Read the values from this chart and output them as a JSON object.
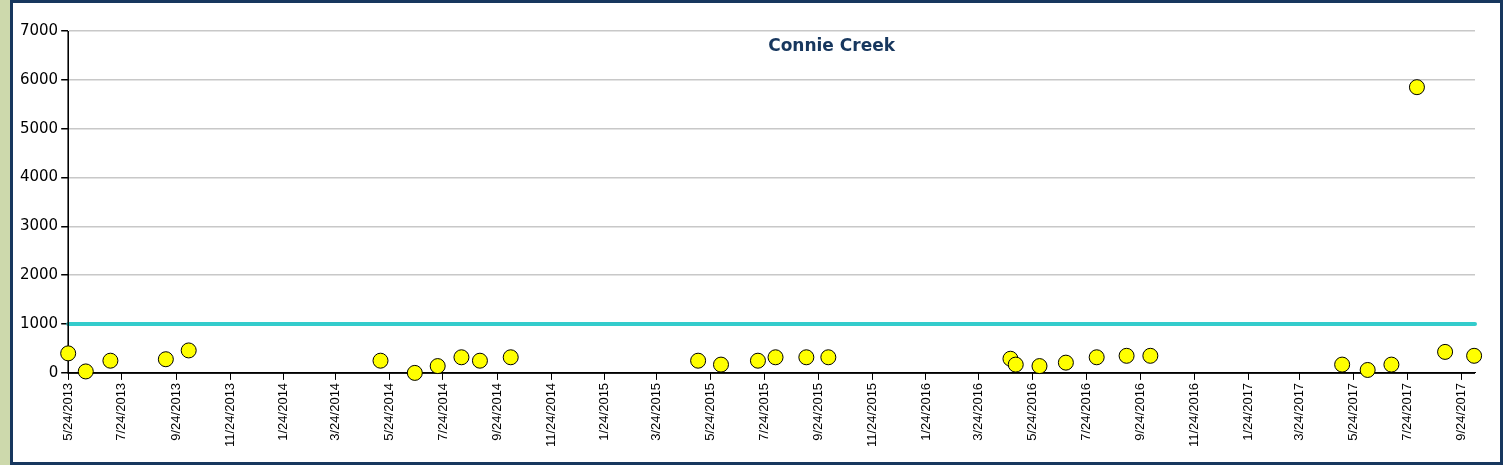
{
  "chart_data": {
    "type": "scatter",
    "title": "Connie Creek",
    "x": [
      "2013-05-24",
      "2013-06-13",
      "2013-07-11",
      "2013-09-12",
      "2013-10-08",
      "2014-05-14",
      "2014-06-22",
      "2014-07-18",
      "2014-08-14",
      "2014-09-04",
      "2014-10-09",
      "2015-05-10",
      "2015-06-05",
      "2015-07-17",
      "2015-08-06",
      "2015-09-10",
      "2015-10-05",
      "2016-04-29",
      "2016-05-05",
      "2016-06-01",
      "2016-07-01",
      "2016-08-05",
      "2016-09-08",
      "2016-10-05",
      "2017-05-11",
      "2017-06-09",
      "2017-07-06",
      "2017-08-04",
      "2017-09-05",
      "2017-10-08"
    ],
    "series": [
      {
        "color": "#ffff00",
        "values": [
          400,
          30,
          250,
          280,
          460,
          250,
          0,
          140,
          320,
          250,
          320,
          250,
          170,
          250,
          320,
          320,
          320,
          290,
          170,
          140,
          210,
          320,
          350,
          350,
          170,
          60,
          170,
          5850,
          430,
          350
        ]
      }
    ],
    "xlim": [
      "2013-05-24",
      "2017-10-09"
    ],
    "xticks": [
      {
        "value": "2013-05-24",
        "label": "5/24/2013"
      },
      {
        "value": "2013-07-24",
        "label": "7/24/2013"
      },
      {
        "value": "2013-09-24",
        "label": "9/24/2013"
      },
      {
        "value": "2013-11-24",
        "label": "11/24/2013"
      },
      {
        "value": "2014-01-24",
        "label": "1/24/2014"
      },
      {
        "value": "2014-03-24",
        "label": "3/24/2014"
      },
      {
        "value": "2014-05-24",
        "label": "5/24/2014"
      },
      {
        "value": "2014-07-24",
        "label": "7/24/2014"
      },
      {
        "value": "2014-09-24",
        "label": "9/24/2014"
      },
      {
        "value": "2014-11-24",
        "label": "11/24/2014"
      },
      {
        "value": "2015-01-24",
        "label": "1/24/2015"
      },
      {
        "value": "2015-03-24",
        "label": "3/24/2015"
      },
      {
        "value": "2015-05-24",
        "label": "5/24/2015"
      },
      {
        "value": "2015-07-24",
        "label": "7/24/2015"
      },
      {
        "value": "2015-09-24",
        "label": "9/24/2015"
      },
      {
        "value": "2015-11-24",
        "label": "11/24/2015"
      },
      {
        "value": "2016-01-24",
        "label": "1/24/2016"
      },
      {
        "value": "2016-03-24",
        "label": "3/24/2016"
      },
      {
        "value": "2016-05-24",
        "label": "5/24/2016"
      },
      {
        "value": "2016-07-24",
        "label": "7/24/2016"
      },
      {
        "value": "2016-09-24",
        "label": "9/24/2016"
      },
      {
        "value": "2016-11-24",
        "label": "11/24/2016"
      },
      {
        "value": "2017-01-24",
        "label": "1/24/2017"
      },
      {
        "value": "2017-03-24",
        "label": "3/24/2017"
      },
      {
        "value": "2017-05-24",
        "label": "5/24/2017"
      },
      {
        "value": "2017-07-24",
        "label": "7/24/2017"
      },
      {
        "value": "2017-09-24",
        "label": "9/24/2017"
      }
    ],
    "ylim": [
      0,
      7000
    ],
    "yticks": [
      0,
      1000,
      2000,
      3000,
      4000,
      5000,
      6000,
      7000
    ],
    "ref_lines": [
      {
        "axis": "y",
        "value": 1000,
        "color": "#33cccc"
      }
    ],
    "grid": "y",
    "legend": false,
    "marker": "circle"
  }
}
